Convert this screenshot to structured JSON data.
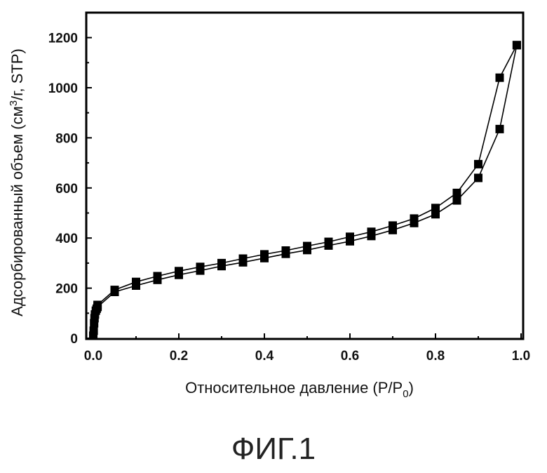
{
  "chart_data": {
    "type": "line",
    "xlabel": "Относительное давление (P/P",
    "xlabel_sub": "0",
    "xlabel_end": ")",
    "ylabel": "Адсорбированный объем (см",
    "ylabel_sup": "3",
    "ylabel_end": "/г, STP)",
    "xlim": [
      0.0,
      1.0
    ],
    "ylim": [
      0,
      1300
    ],
    "xticks": [
      0.0,
      0.2,
      0.4,
      0.6,
      0.8,
      1.0
    ],
    "xtick_labels": [
      "0.0",
      "0.2",
      "0.4",
      "0.6",
      "0.8",
      "1.0"
    ],
    "yticks": [
      0,
      200,
      400,
      600,
      800,
      1000,
      1200
    ],
    "ytick_labels": [
      "0",
      "200",
      "400",
      "600",
      "800",
      "1000",
      "1200"
    ],
    "marker": "square",
    "color": "#000000",
    "series": [
      {
        "x": [
          0.0,
          0.001,
          0.002,
          0.003,
          0.004,
          0.006,
          0.008,
          0.01,
          0.05,
          0.1,
          0.15,
          0.2,
          0.25,
          0.3,
          0.35,
          0.4,
          0.45,
          0.5,
          0.55,
          0.6,
          0.65,
          0.7,
          0.75,
          0.8,
          0.85,
          0.9,
          0.95,
          0.99
        ],
        "y": [
          10,
          30,
          60,
          80,
          95,
          110,
          118,
          125,
          185,
          210,
          233,
          253,
          270,
          288,
          303,
          320,
          337,
          352,
          370,
          387,
          408,
          432,
          460,
          495,
          550,
          640,
          835,
          1170
        ]
      },
      {
        "x": [
          0.99,
          0.95,
          0.9,
          0.85,
          0.8,
          0.75,
          0.7,
          0.65,
          0.6,
          0.55,
          0.5,
          0.45,
          0.4,
          0.35,
          0.3,
          0.25,
          0.2,
          0.15,
          0.1,
          0.05,
          0.01
        ],
        "y": [
          1170,
          1040,
          695,
          580,
          520,
          478,
          450,
          425,
          405,
          385,
          368,
          350,
          335,
          318,
          300,
          285,
          268,
          248,
          225,
          193,
          133
        ]
      }
    ]
  },
  "figure": {
    "caption": "ФИГ.1"
  }
}
